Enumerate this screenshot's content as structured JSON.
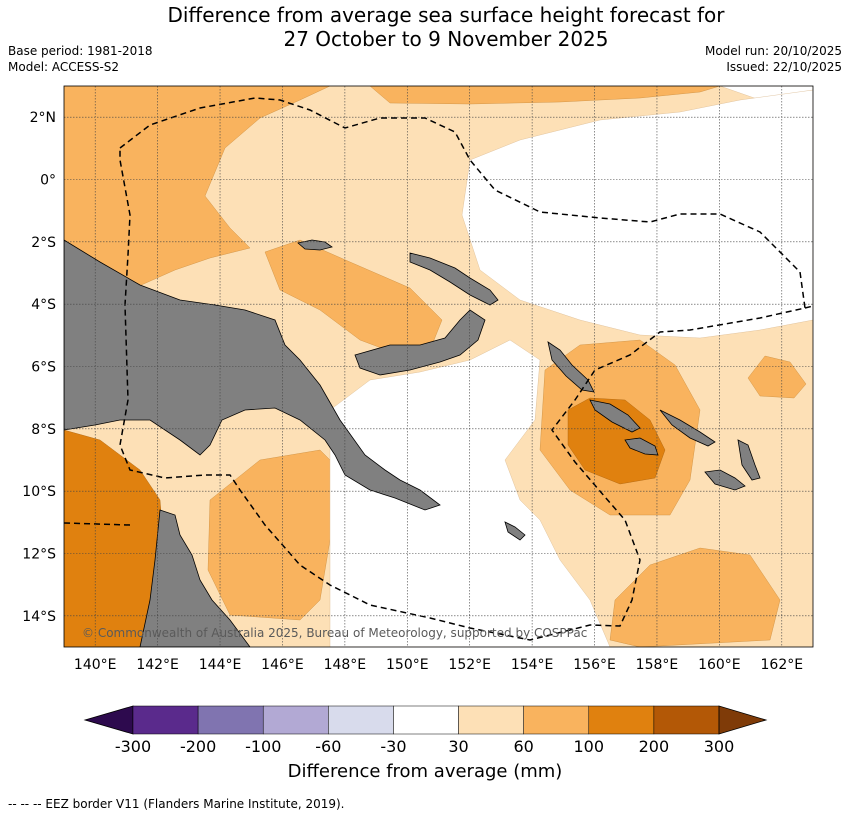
{
  "title": {
    "line1": "Difference from average sea surface height forecast for",
    "line2": "27 October to 9 November 2025"
  },
  "meta": {
    "base_period": "Base period: 1981-2018",
    "model": "Model: ACCESS-S2",
    "model_run": "Model run: 20/10/2025",
    "issued": "Issued: 22/10/2025"
  },
  "map": {
    "lon_range": [
      139,
      163
    ],
    "lat_range": [
      -15,
      3
    ],
    "lon_ticks": [
      "140°E",
      "142°E",
      "144°E",
      "146°E",
      "148°E",
      "150°E",
      "152°E",
      "154°E",
      "156°E",
      "158°E",
      "160°E",
      "162°E"
    ],
    "lat_ticks": [
      "2°N",
      "0°",
      "2°S",
      "4°S",
      "6°S",
      "8°S",
      "10°S",
      "12°S",
      "14°S"
    ],
    "copyright": "© Commonwealth of Australia 2025, Bureau of Meteorology, supported by COSPPac",
    "land_color": "#808080",
    "gridlines": true
  },
  "colorbar": {
    "label": "Difference from average (mm)",
    "ticks": [
      "-300",
      "-200",
      "-100",
      "-60",
      "-30",
      "30",
      "60",
      "100",
      "200",
      "300"
    ],
    "colors": [
      "#2d0a4e",
      "#5a2a8c",
      "#8074b0",
      "#b2a9d4",
      "#d8dbec",
      "#ffffff",
      "#fde0b6",
      "#f9b35e",
      "#e0810f",
      "#b35806",
      "#7f3b08"
    ]
  },
  "footnote": "--  --  -- EEZ border V11 (Flanders Marine Institute, 2019)."
}
